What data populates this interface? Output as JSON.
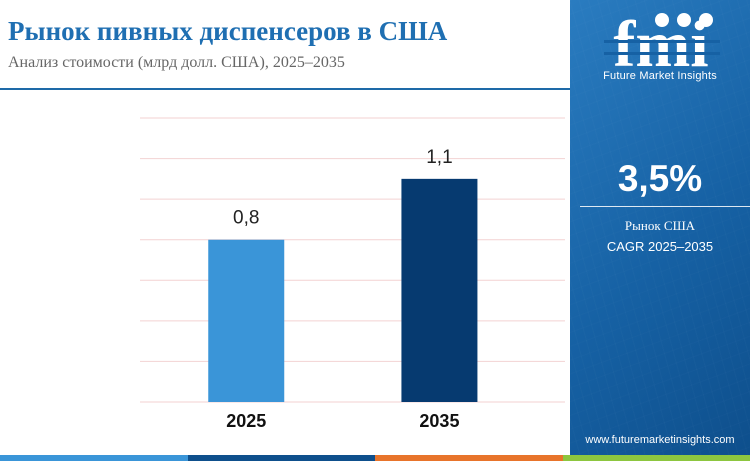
{
  "header": {
    "title": "Рынок пивных диспенсеров в США",
    "subtitle": "Анализ стоимости (млрд долл. США), 2025–2035"
  },
  "chart_data": {
    "type": "bar",
    "title": "",
    "xlabel": "",
    "ylabel": "",
    "categories": [
      "2025",
      "2035"
    ],
    "values": [
      0.8,
      1.1
    ],
    "value_labels": [
      "0,8",
      "1,1"
    ],
    "ylim": [
      0,
      1.4
    ],
    "grid": true,
    "legend": "none",
    "colors": [
      "#3a95d8",
      "#063a70"
    ]
  },
  "panel": {
    "logo_text": "fmi",
    "logo_tagline": "Future Market Insights",
    "cagr_value": "3,5%",
    "cagr_label_line1": "Рынок США",
    "cagr_label_line2": "CAGR 2025–2035",
    "website": "www.futuremarketinsights.com"
  },
  "colors": {
    "title": "#1f6fb2",
    "panel": "#1661a4",
    "accent_bar": [
      "#3a95d8",
      "#0e4f8c",
      "#e8742b",
      "#8dc63f"
    ]
  }
}
